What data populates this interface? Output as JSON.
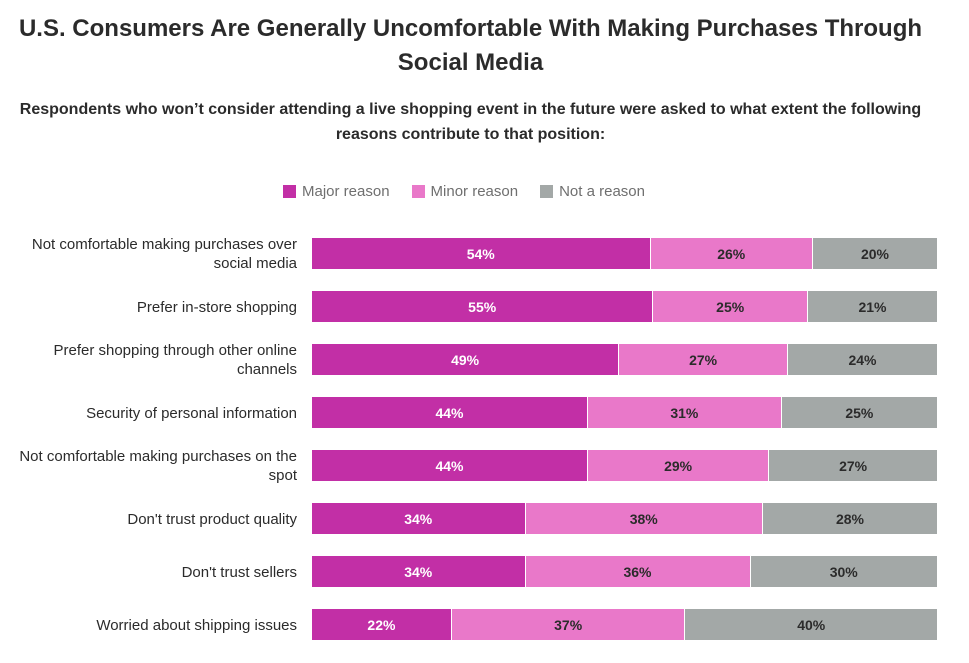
{
  "chart_data": {
    "type": "bar",
    "orientation": "horizontal",
    "stacked": true,
    "title": "U.S. Consumers Are Generally Uncomfortable With Making Purchases Through Social Media",
    "subtitle": "Respondents who won’t consider attending a live shopping event in the future were asked to what extent the following reasons contribute to that position:",
    "legend_position": "top",
    "categories": [
      "Not comfortable making purchases over social media",
      "Prefer in-store shopping",
      "Prefer shopping through other online channels",
      "Security of personal information",
      "Not comfortable making purchases on the spot",
      "Don't trust product quality",
      "Don't trust sellers",
      "Worried about shipping issues"
    ],
    "series": [
      {
        "name": "Major reason",
        "color": "#c22fa6",
        "values": [
          54,
          55,
          49,
          44,
          44,
          34,
          34,
          22
        ]
      },
      {
        "name": "Minor reason",
        "color": "#e978c9",
        "values": [
          26,
          25,
          27,
          31,
          29,
          38,
          36,
          37
        ]
      },
      {
        "name": "Not a reason",
        "color": "#a3a8a7",
        "values": [
          20,
          21,
          24,
          25,
          27,
          28,
          30,
          40
        ]
      }
    ],
    "value_suffix": "%",
    "xlim": [
      0,
      100
    ]
  }
}
